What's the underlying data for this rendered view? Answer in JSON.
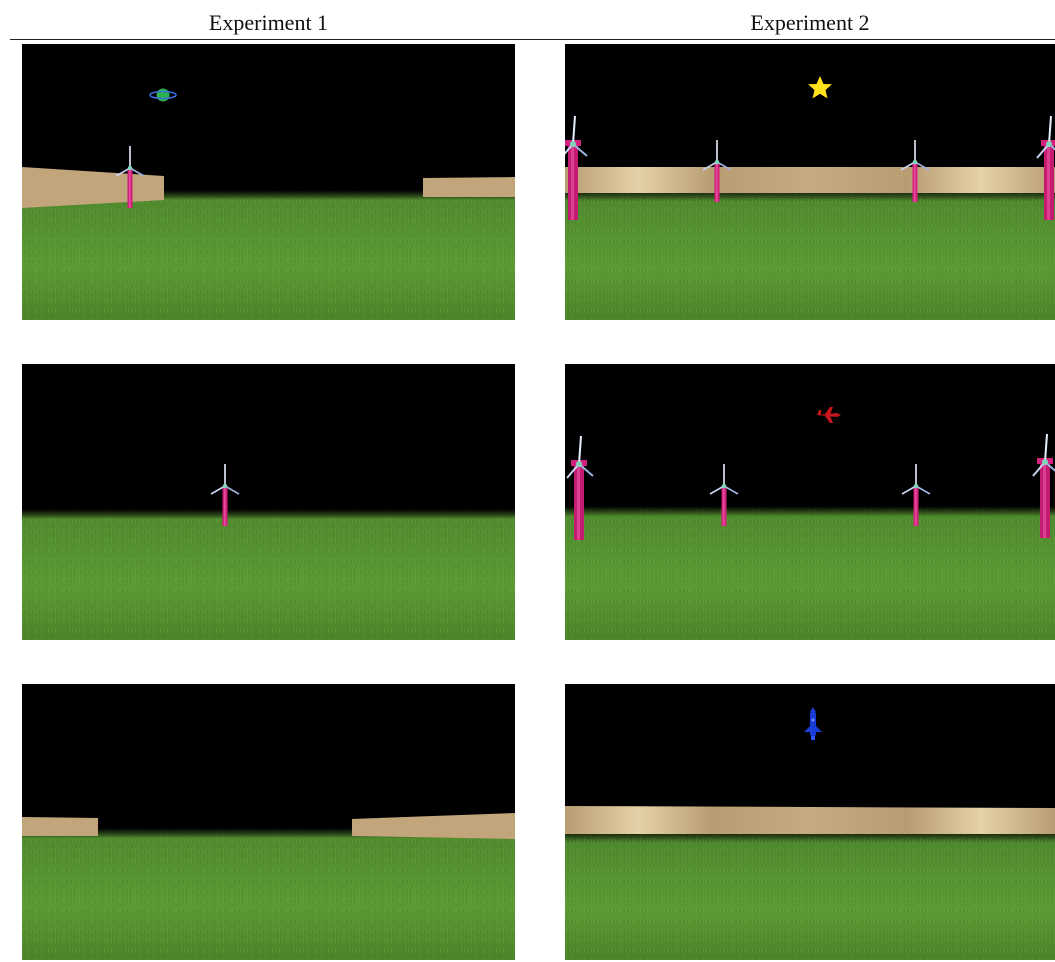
{
  "headers": {
    "col1": "Experiment 1",
    "col2": "Experiment 2"
  },
  "colors": {
    "sky": "#000000",
    "grass": "#4f8a2e",
    "wall": "#c2a57b",
    "turbine_tower": "#d4207e"
  },
  "panels": [
    {
      "column": 1,
      "row": 1,
      "landmark_icon": "saturn-icon",
      "walls": "split",
      "turbines": 1
    },
    {
      "column": 1,
      "row": 2,
      "landmark_icon": "none",
      "walls": "none",
      "turbines": 1
    },
    {
      "column": 1,
      "row": 3,
      "landmark_icon": "none",
      "walls": "split",
      "turbines": 0
    },
    {
      "column": 2,
      "row": 1,
      "landmark_icon": "star-icon",
      "walls": "full",
      "turbines": 4
    },
    {
      "column": 2,
      "row": 2,
      "landmark_icon": "airplane-icon",
      "walls": "none",
      "turbines": 4
    },
    {
      "column": 2,
      "row": 3,
      "landmark_icon": "rocket-icon",
      "walls": "full",
      "turbines": 0
    }
  ]
}
